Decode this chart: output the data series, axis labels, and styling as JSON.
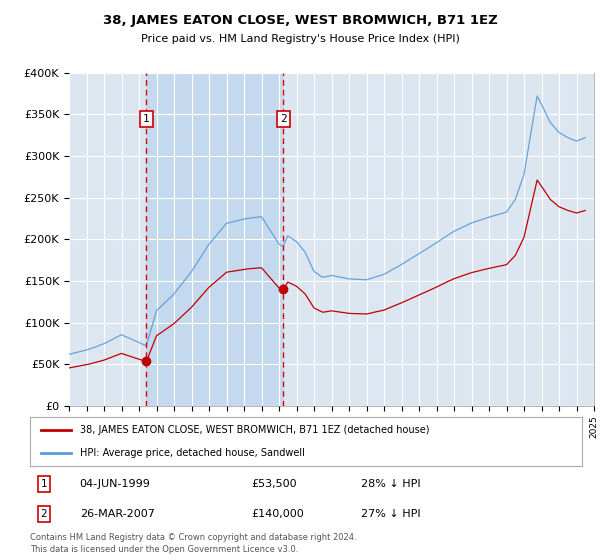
{
  "title": "38, JAMES EATON CLOSE, WEST BROMWICH, B71 1EZ",
  "subtitle": "Price paid vs. HM Land Registry's House Price Index (HPI)",
  "ylim": [
    0,
    400000
  ],
  "yticks": [
    0,
    50000,
    100000,
    150000,
    200000,
    250000,
    300000,
    350000,
    400000
  ],
  "ytick_labels": [
    "£0",
    "£50K",
    "£100K",
    "£150K",
    "£200K",
    "£250K",
    "£300K",
    "£350K",
    "£400K"
  ],
  "background_color": "#ffffff",
  "plot_background_color": "#dce6f1",
  "grid_color": "#ffffff",
  "fill_color": "#c5d9ee",
  "legend_label_red": "38, JAMES EATON CLOSE, WEST BROMWICH, B71 1EZ (detached house)",
  "legend_label_blue": "HPI: Average price, detached house, Sandwell",
  "transaction1_date": "04-JUN-1999",
  "transaction1_price": "£53,500",
  "transaction1_pct": "28% ↓ HPI",
  "transaction2_date": "26-MAR-2007",
  "transaction2_price": "£140,000",
  "transaction2_pct": "27% ↓ HPI",
  "footer": "Contains HM Land Registry data © Crown copyright and database right 2024.\nThis data is licensed under the Open Government Licence v3.0.",
  "marker1_x": 1999.42,
  "marker1_y": 53500,
  "marker2_x": 2007.23,
  "marker2_y": 140000,
  "xmin": 1995.0,
  "xmax": 2025.0
}
